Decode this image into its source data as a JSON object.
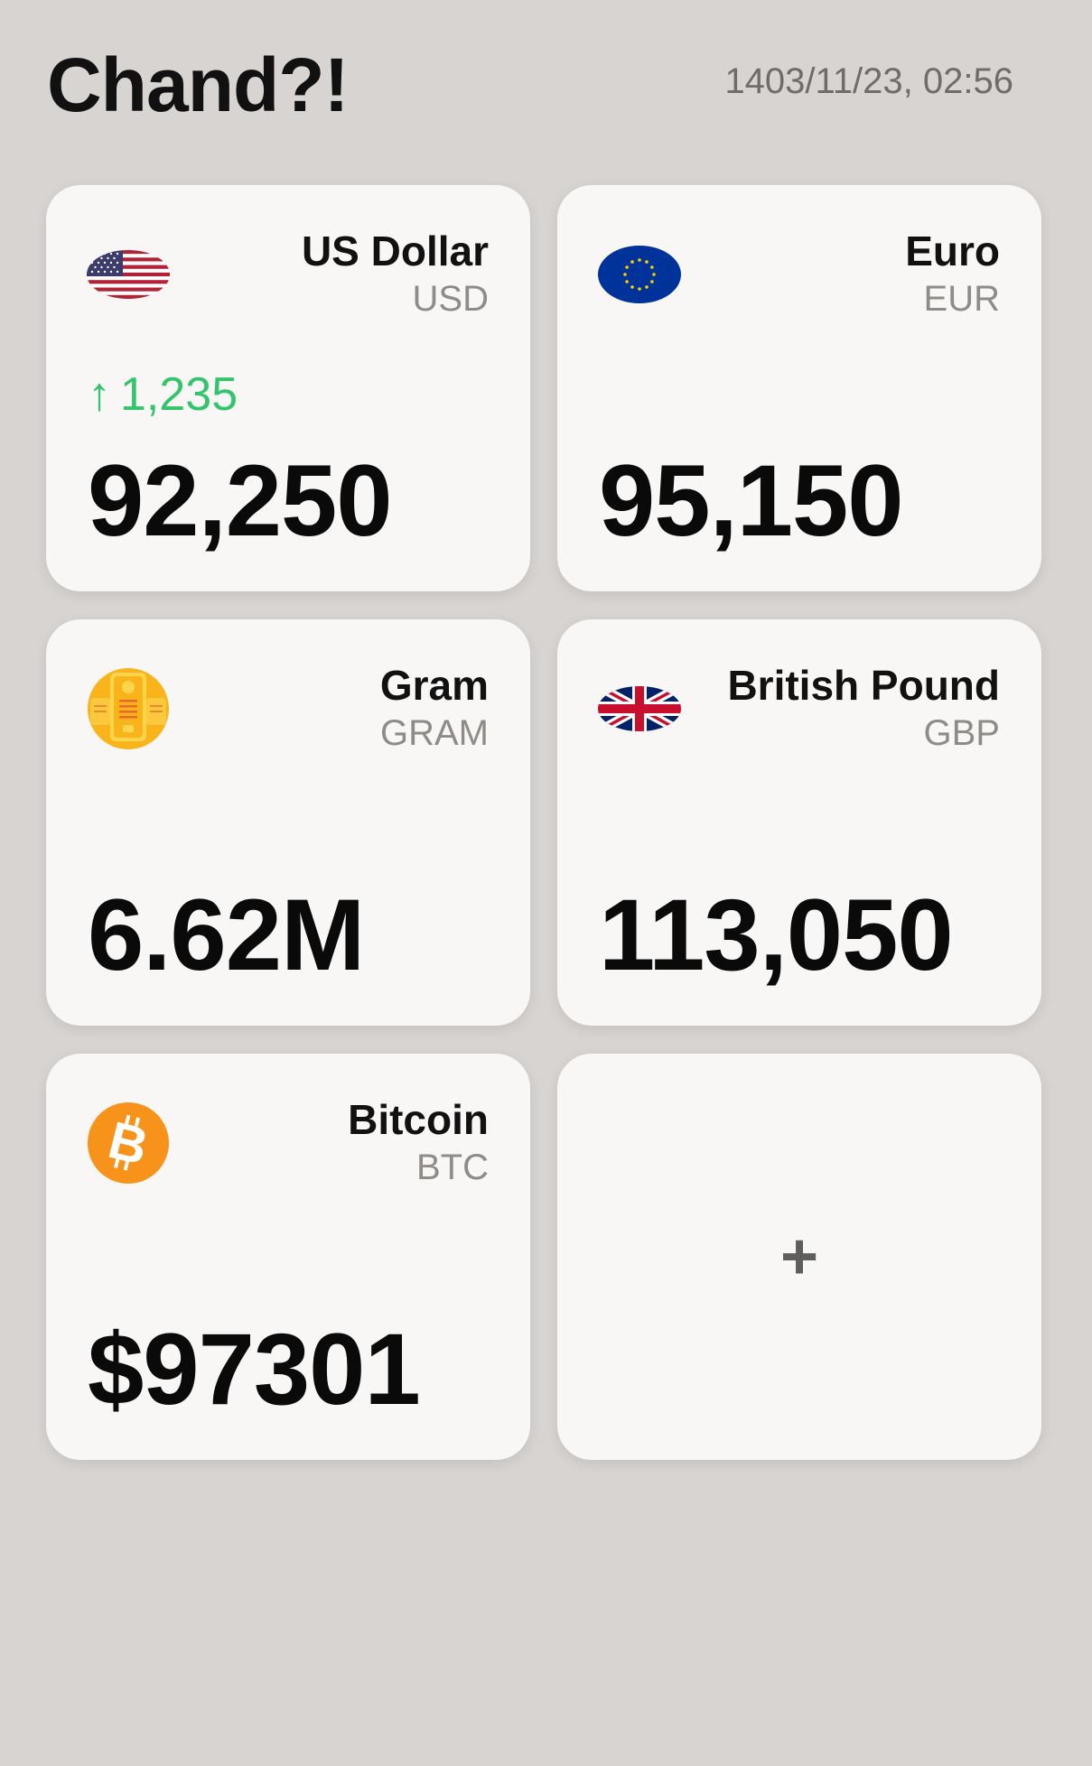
{
  "header": {
    "title": "Chand?!",
    "timestamp": "1403/11/23, 02:56"
  },
  "cards": [
    {
      "name": "US Dollar",
      "code": "USD",
      "icon": "us-flag-icon",
      "change_arrow": "↑",
      "change": "1,235",
      "change_color": "#33c56b",
      "value": "92,250"
    },
    {
      "name": "Euro",
      "code": "EUR",
      "icon": "eu-flag-icon",
      "value": "95,150"
    },
    {
      "name": "Gram",
      "code": "GRAM",
      "icon": "gold-bars-icon",
      "value": "6.62M"
    },
    {
      "name": "British Pound",
      "code": "GBP",
      "icon": "uk-flag-icon",
      "value": "113,050"
    },
    {
      "name": "Bitcoin",
      "code": "BTC",
      "icon": "bitcoin-icon",
      "value": "$97301"
    }
  ],
  "add_card": {
    "symbol": "+"
  },
  "colors": {
    "background": "#d7d4d1",
    "card": "#f8f7f6",
    "positive": "#33c56b",
    "bitcoin": "#f7931a",
    "gold": "#f9b41b"
  }
}
